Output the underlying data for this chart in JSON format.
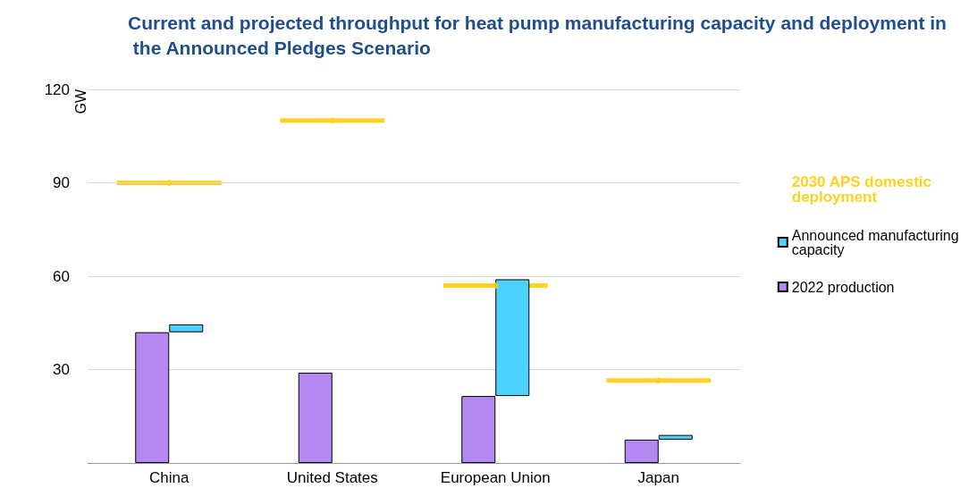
{
  "chart_data": {
    "type": "bar",
    "title": "Current and projected throughput for heat pump manufacturing capacity and deployment in the Announced Pledges Scenario",
    "ylabel": "GW",
    "categories": [
      "China",
      "United States",
      "European Union",
      "Japan"
    ],
    "series": [
      {
        "name": "2022 production",
        "color": "#b388f0",
        "values": [
          42,
          29,
          21.5,
          7.5
        ]
      },
      {
        "name": "Announced manufacturing capacity",
        "color": "#4dd2ff",
        "base": [
          42,
          null,
          21.5,
          7.5
        ],
        "values": [
          2.5,
          null,
          37.5,
          1.5
        ]
      },
      {
        "name": "2030 APS domestic deployment",
        "type": "scatter",
        "color": "#ffd21f",
        "values": [
          90,
          110,
          57,
          26.5
        ]
      }
    ],
    "ylim": [
      0,
      120
    ],
    "yticks": [
      30,
      60,
      90,
      120
    ],
    "grid": "y",
    "legend": "right"
  }
}
